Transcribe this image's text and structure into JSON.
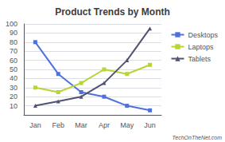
{
  "chart_data": {
    "type": "line",
    "title": "Product Trends by Month",
    "categories": [
      "Jan",
      "Feb",
      "Mar",
      "Apr",
      "May",
      "Jun"
    ],
    "series": [
      {
        "name": "Desktops",
        "values": [
          80,
          45,
          25,
          20,
          10,
          5
        ],
        "marker": "square"
      },
      {
        "name": "Laptops",
        "values": [
          30,
          25,
          35,
          50,
          45,
          55
        ],
        "marker": "square"
      },
      {
        "name": "Tablets",
        "values": [
          10,
          15,
          20,
          35,
          60,
          95
        ],
        "marker": "triangle"
      }
    ],
    "ylim": [
      0,
      100
    ],
    "yticks": [
      {
        "value": 0,
        "label": ""
      },
      10,
      20,
      30,
      40,
      50,
      60,
      70,
      80,
      90,
      100
    ],
    "grid": true,
    "legend": "right",
    "annotations": [
      "TechOnTheNet.com"
    ]
  }
}
